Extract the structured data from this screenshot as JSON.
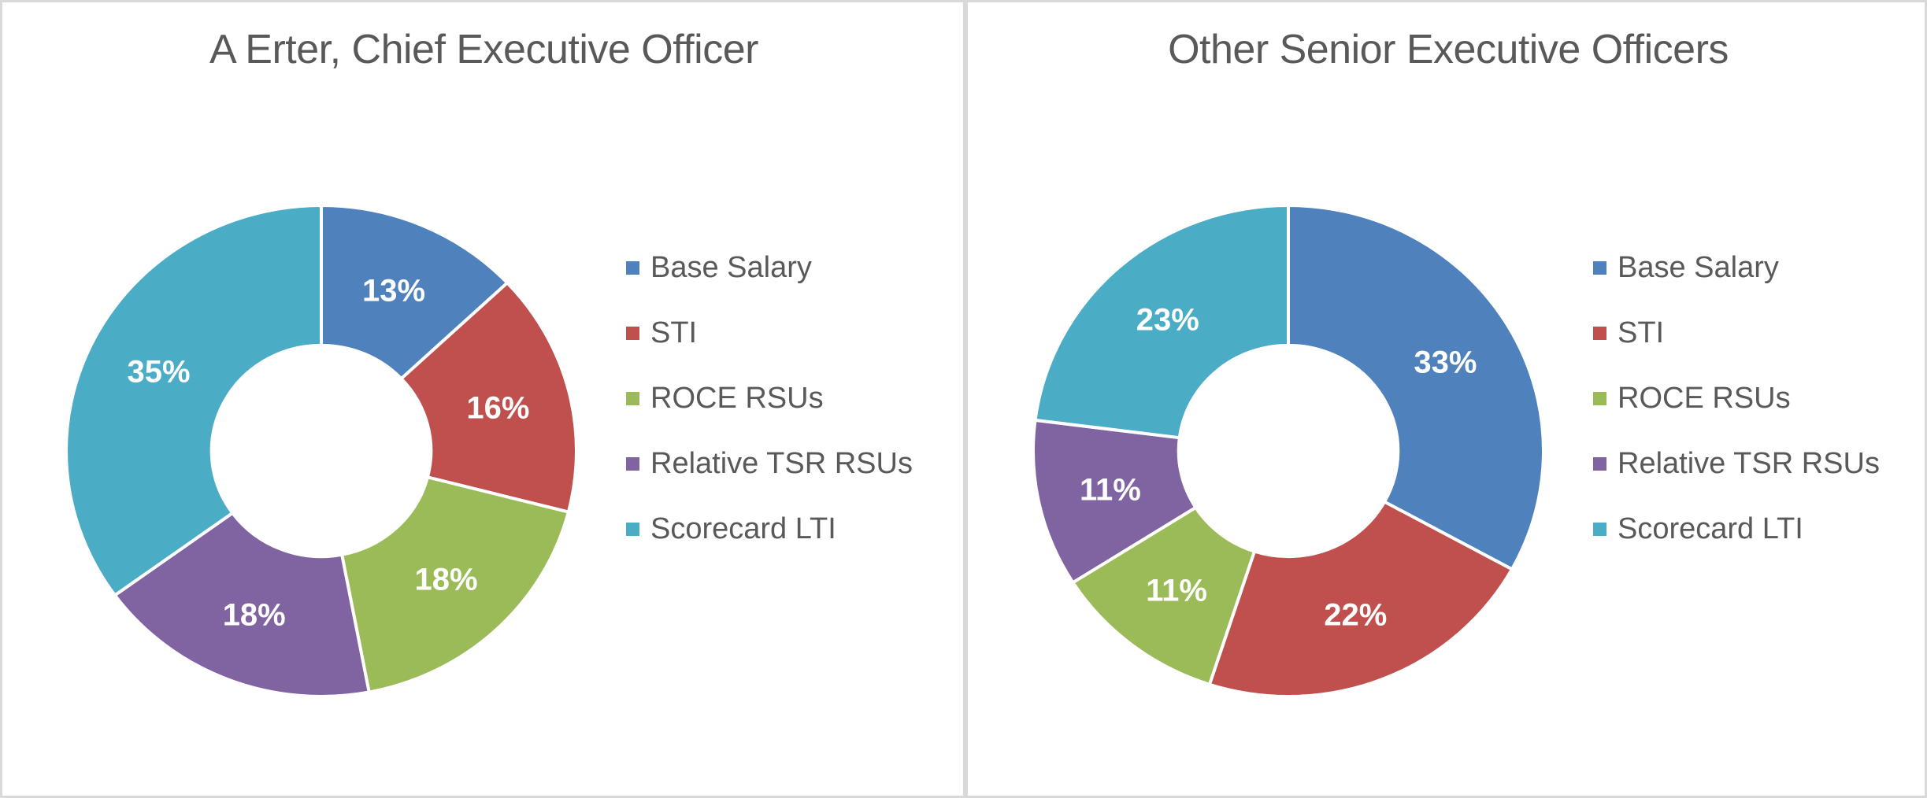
{
  "chart_data": [
    {
      "type": "pie",
      "subtype": "donut",
      "title": "A Erter, Chief Executive Officer",
      "categories": [
        "Base Salary",
        "STI",
        "ROCE RSUs",
        "Relative TSR RSUs",
        "Scorecard LTI"
      ],
      "values": [
        13,
        16,
        18,
        18,
        35
      ],
      "labels": [
        "13%",
        "16%",
        "18%",
        "18%",
        "35%"
      ],
      "colors": [
        "#4F81BD",
        "#C0504D",
        "#9BBB59",
        "#8064A2",
        "#4BACC6"
      ],
      "label_color": "#FFFFFF",
      "title_color": "#595959",
      "legend_text_color": "#595959",
      "legend_position": "right",
      "start_angle_deg": 0,
      "direction": "clockwise",
      "donut_hole_ratio": 0.43
    },
    {
      "type": "pie",
      "subtype": "donut",
      "title": "Other Senior Executive Officers",
      "categories": [
        "Base Salary",
        "STI",
        "ROCE RSUs",
        "Relative TSR RSUs",
        "Scorecard LTI"
      ],
      "values": [
        33,
        22,
        11,
        11,
        23
      ],
      "labels": [
        "33%",
        "22%",
        "11%",
        "11%",
        "23%"
      ],
      "colors": [
        "#4F81BD",
        "#C0504D",
        "#9BBB59",
        "#8064A2",
        "#4BACC6"
      ],
      "label_color": "#FFFFFF",
      "title_color": "#595959",
      "legend_text_color": "#595959",
      "legend_position": "right",
      "start_angle_deg": 0,
      "direction": "clockwise",
      "donut_hole_ratio": 0.43
    }
  ],
  "frame": {
    "border_color": "#D9D9D9",
    "divider_color": "#D9D9D9",
    "background_color": "#FFFFFF"
  }
}
